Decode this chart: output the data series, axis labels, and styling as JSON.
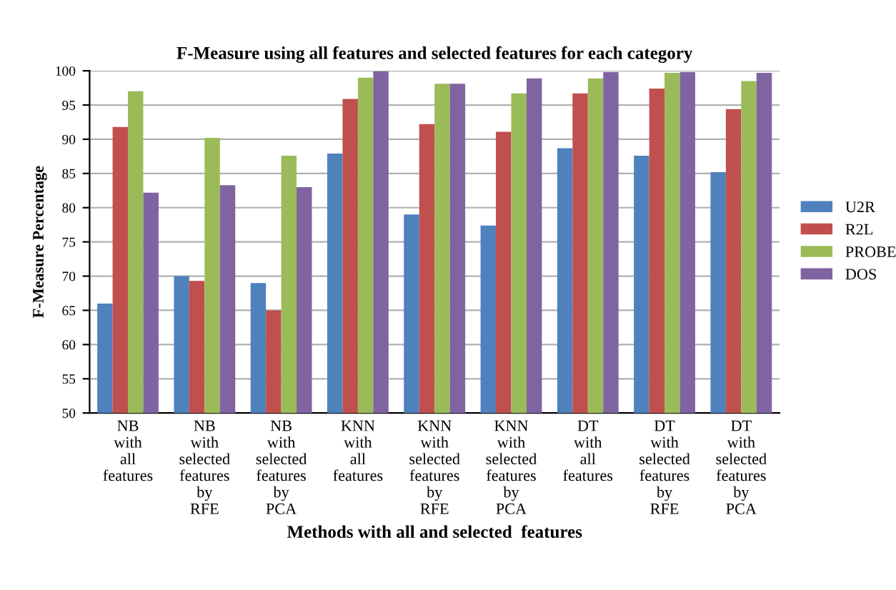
{
  "chart_data": {
    "type": "bar",
    "title": "F-Measure using all features and selected features for each category",
    "xlabel": "Methods with all and selected  features",
    "ylabel": "F-Measure Percentage",
    "categories": [
      "NB with all features",
      "NB with selected features by RFE",
      "NB with selected features by PCA",
      "KNN with all features",
      "KNN with selected features by RFE",
      "KNN with selected features by PCA",
      "DT with all features",
      "DT with selected features by RFE",
      "DT with selected features by PCA"
    ],
    "series": [
      {
        "name": "U2R",
        "color": "#4f81bd",
        "values": [
          66.0,
          70.0,
          69.0,
          87.9,
          79.0,
          77.4,
          88.7,
          87.6,
          85.2
        ]
      },
      {
        "name": "R2L",
        "color": "#c0504d",
        "values": [
          91.8,
          69.3,
          65.0,
          95.9,
          92.2,
          91.1,
          96.7,
          97.4,
          94.4
        ]
      },
      {
        "name": "PROBE",
        "color": "#9bbb59",
        "values": [
          97.0,
          90.2,
          87.6,
          99.0,
          98.1,
          96.7,
          98.9,
          99.7,
          98.5
        ]
      },
      {
        "name": "DOS",
        "color": "#8064a2",
        "values": [
          82.2,
          83.3,
          83.0,
          99.9,
          98.1,
          98.9,
          99.8,
          99.8,
          99.7
        ]
      }
    ],
    "ylim": [
      50,
      100
    ],
    "yticks": [
      50,
      55,
      60,
      65,
      70,
      75,
      80,
      85,
      90,
      95,
      100
    ],
    "grid": "y",
    "legend": "right"
  }
}
